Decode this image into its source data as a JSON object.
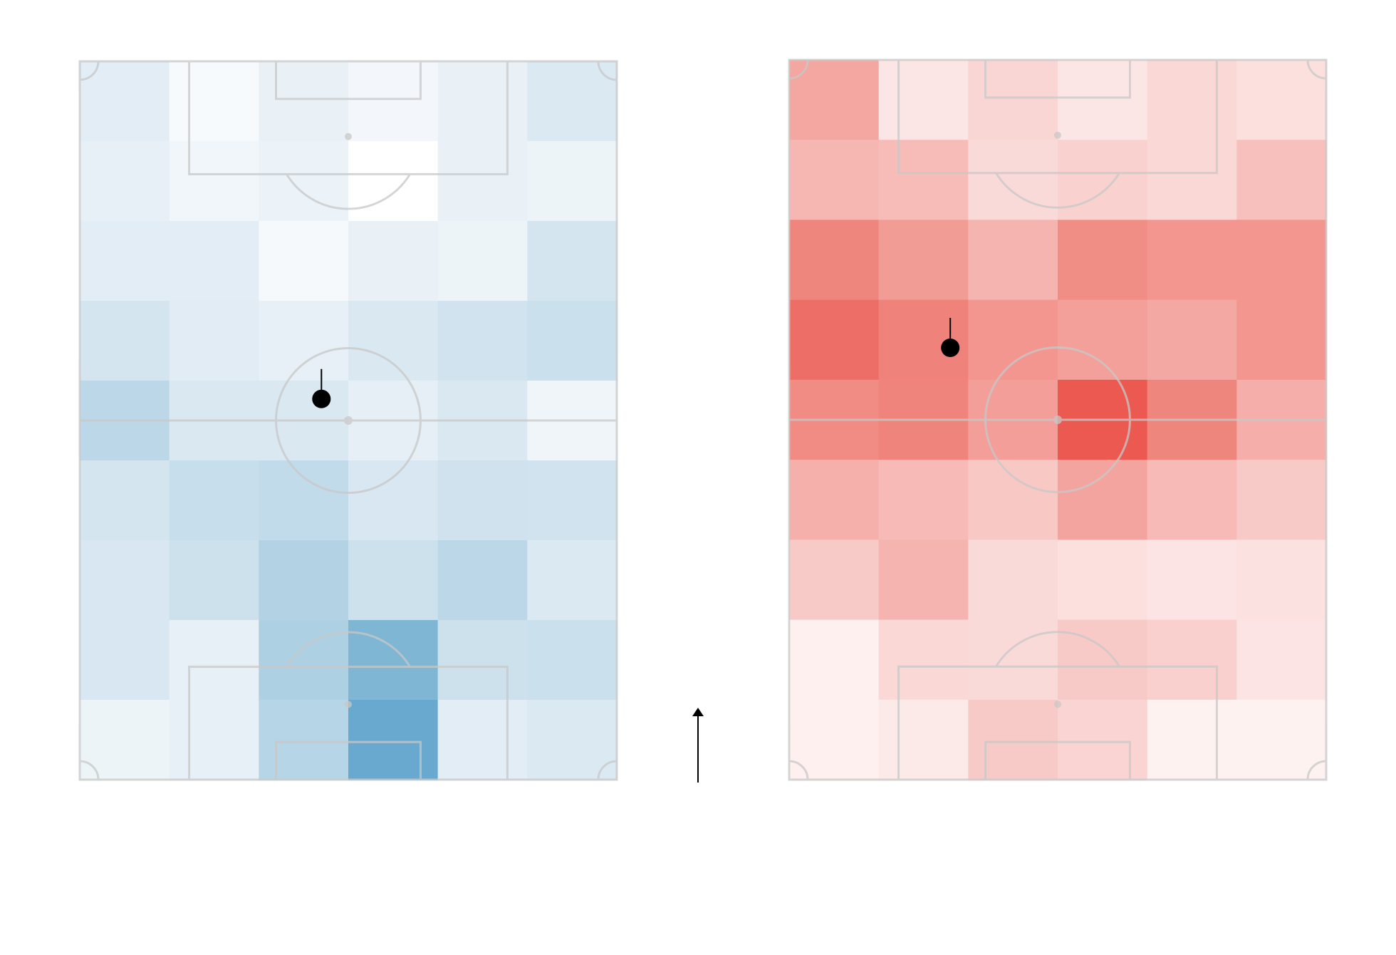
{
  "chart_data": [
    {
      "type": "heatmap",
      "colormap": "Blues",
      "pitch_orientation": "vertical",
      "grid": {
        "cols": 6,
        "rows": 9
      },
      "values": [
        [
          0.14,
          0.04,
          0.11,
          0.06,
          0.11,
          0.18
        ],
        [
          0.12,
          0.07,
          0.1,
          0.0,
          0.11,
          0.09
        ],
        [
          0.14,
          0.14,
          0.05,
          0.11,
          0.09,
          0.22
        ],
        [
          0.22,
          0.15,
          0.12,
          0.19,
          0.24,
          0.27
        ],
        [
          0.35,
          0.19,
          0.19,
          0.13,
          0.19,
          0.08
        ],
        [
          0.22,
          0.29,
          0.32,
          0.2,
          0.25,
          0.24
        ],
        [
          0.2,
          0.26,
          0.38,
          0.26,
          0.35,
          0.18
        ],
        [
          0.2,
          0.12,
          0.4,
          0.55,
          0.26,
          0.27
        ],
        [
          0.09,
          0.12,
          0.37,
          0.62,
          0.14,
          0.18
        ]
      ],
      "average_position": {
        "x": 0.45,
        "y": 0.47
      }
    },
    {
      "type": "heatmap",
      "colormap": "Reds",
      "pitch_orientation": "vertical",
      "grid": {
        "cols": 6,
        "rows": 9
      },
      "values": [
        [
          0.42,
          0.1,
          0.18,
          0.1,
          0.17,
          0.13
        ],
        [
          0.34,
          0.31,
          0.16,
          0.2,
          0.17,
          0.29
        ],
        [
          0.58,
          0.47,
          0.35,
          0.54,
          0.5,
          0.5
        ],
        [
          0.7,
          0.6,
          0.5,
          0.45,
          0.41,
          0.5
        ],
        [
          0.55,
          0.59,
          0.46,
          0.82,
          0.58,
          0.38
        ],
        [
          0.37,
          0.32,
          0.25,
          0.43,
          0.32,
          0.24
        ],
        [
          0.24,
          0.35,
          0.16,
          0.13,
          0.11,
          0.12
        ],
        [
          0.05,
          0.17,
          0.16,
          0.24,
          0.21,
          0.11
        ],
        [
          0.05,
          0.08,
          0.24,
          0.19,
          0.04,
          0.04
        ]
      ],
      "average_position": {
        "x": 0.3,
        "y": 0.4
      }
    }
  ],
  "attack_direction": "up",
  "colors": {
    "pitch_lines": "#c8c8c8",
    "marker": "#000000",
    "background": "#ffffff"
  }
}
